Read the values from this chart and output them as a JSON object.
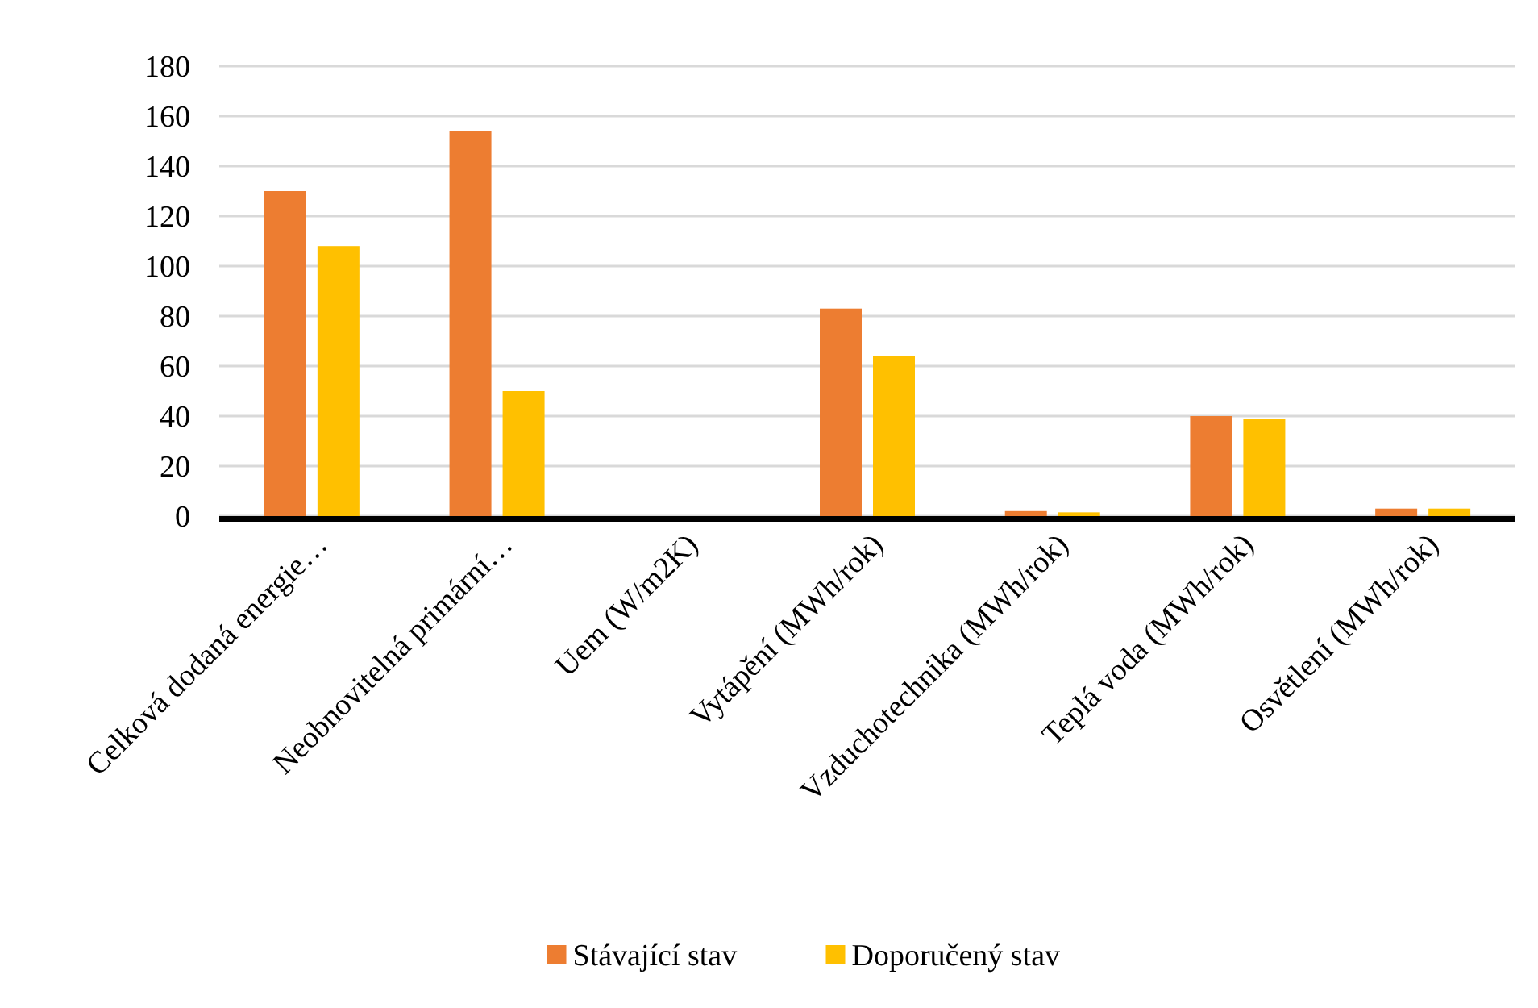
{
  "chart_data": {
    "type": "bar",
    "categories": [
      "Celková dodaná energie…",
      "Neobnovitelná primární…",
      "Uem (W/m2K)",
      "Vytápění (MWh/rok)",
      "Vzduchotechnika (MWh/rok)",
      "Teplá voda (MWh/rok)",
      "Osvětlení (MWh/rok)"
    ],
    "series": [
      {
        "name": "Stávající stav",
        "color": "#ed7d31",
        "values": [
          130,
          154,
          null,
          83,
          2,
          40,
          3
        ]
      },
      {
        "name": "Doporučený stav",
        "color": "#ffc000",
        "values": [
          108,
          50,
          null,
          64,
          1.5,
          39,
          3
        ]
      }
    ],
    "ylim": [
      0,
      180
    ],
    "yticks": [
      0,
      20,
      40,
      60,
      80,
      100,
      120,
      140,
      160,
      180
    ],
    "grid": "y",
    "legend": "bottom"
  }
}
